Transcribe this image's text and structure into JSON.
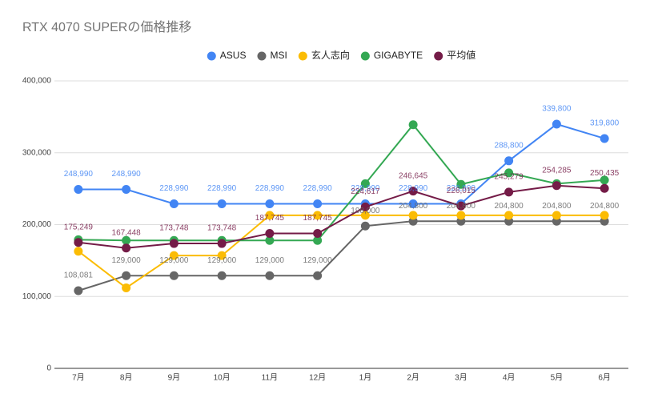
{
  "chart_data": {
    "type": "line",
    "title": "RTX 4070 SUPERの価格推移",
    "categories": [
      "7月",
      "8月",
      "9月",
      "10月",
      "11月",
      "12月",
      "1月",
      "2月",
      "3月",
      "4月",
      "5月",
      "6月"
    ],
    "ylim": [
      0,
      400000
    ],
    "yticks": [
      0,
      {
        "value": 100000,
        "label": "100,000"
      },
      {
        "value": 200000,
        "label": "200,000"
      },
      {
        "value": 300000,
        "label": "300,000"
      },
      {
        "value": 400000,
        "label": "400,000"
      }
    ],
    "grid": true,
    "legend": "top",
    "series": [
      {
        "name": "ASUS",
        "color": "#4285f4",
        "values": [
          248990,
          248990,
          228990,
          228990,
          228990,
          228990,
          228990,
          228990,
          228990,
          288800,
          339800,
          319800
        ],
        "value_labels": [
          "248,990",
          "248,990",
          "228,990",
          "228,990",
          "228,990",
          "228,990",
          "228,990",
          "228,990",
          "228,990",
          "288,800",
          "339,800",
          "319,800"
        ]
      },
      {
        "name": "MSI",
        "color": "#666666",
        "values": [
          108081,
          129000,
          129000,
          129000,
          129000,
          129000,
          198000,
          204800,
          204800,
          204800,
          204800,
          204800
        ],
        "value_labels": [
          "108,081",
          "129,000",
          "129,000",
          "129,000",
          "129,000",
          "129,000",
          "198,000",
          "204,800",
          "204,800",
          "204,800",
          "204,800",
          "204,800"
        ]
      },
      {
        "name": "玄人志向",
        "color": "#fbbc04",
        "values": [
          163000,
          112000,
          157000,
          157000,
          213000,
          213000,
          213000,
          213000,
          213000,
          213000,
          213000,
          213000
        ]
      },
      {
        "name": "GIGABYTE",
        "color": "#34a853",
        "values": [
          179000,
          178000,
          178000,
          178000,
          178000,
          178000,
          257000,
          339000,
          256000,
          272000,
          257000,
          262000
        ]
      },
      {
        "name": "平均値",
        "color": "#741b47",
        "values": [
          175249,
          167448,
          173748,
          173748,
          187745,
          187745,
          224617,
          246645,
          226015,
          245279,
          254285,
          250435
        ],
        "value_labels": [
          "175,249",
          "167,448",
          "173,748",
          "173,748",
          "187,745",
          "187,745",
          "224,617",
          "246,645",
          "226,015",
          "245,279",
          "254,285",
          "250,435"
        ]
      }
    ]
  }
}
